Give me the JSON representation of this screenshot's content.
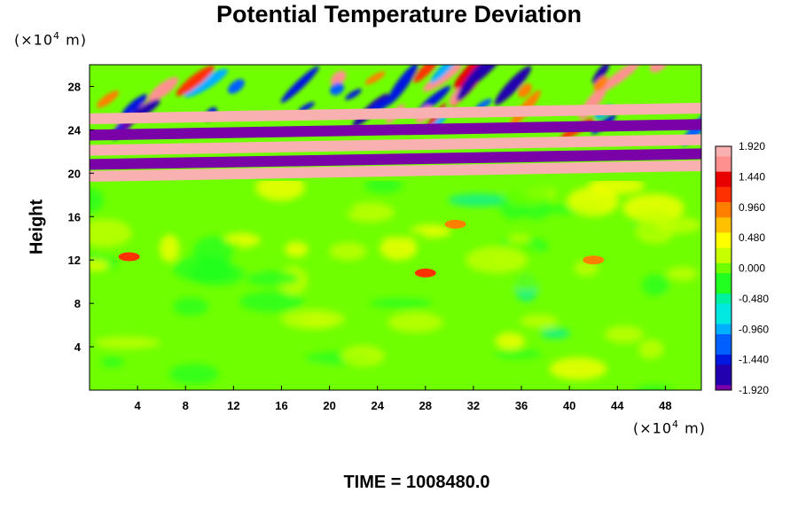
{
  "chart_data": {
    "type": "heatmap",
    "title": "Potential Temperature Deviation",
    "xlabel": "",
    "ylabel": "Height",
    "x_unit": "(×10",
    "x_unit_exp": "4",
    "x_unit_tail": " m)",
    "y_unit": "(×10",
    "y_unit_exp": "4",
    "y_unit_tail": " m)",
    "xlim": [
      0,
      51
    ],
    "ylim": [
      0,
      30
    ],
    "x_ticks": [
      4,
      8,
      12,
      16,
      20,
      24,
      28,
      32,
      36,
      40,
      44,
      48
    ],
    "y_ticks": [
      4,
      8,
      12,
      16,
      20,
      24,
      28
    ],
    "colorbar": {
      "min": -1.92,
      "max": 1.92,
      "tick_labels": [
        "1.920",
        "1.440",
        "0.960",
        "0.480",
        "0.000",
        "-0.480",
        "-0.960",
        "-1.440",
        "-1.920"
      ],
      "tick_values": [
        1.92,
        1.44,
        0.96,
        0.48,
        0.0,
        -0.48,
        -0.96,
        -1.44,
        -1.92
      ],
      "colors": [
        "#7a00a8",
        "#2200b0",
        "#0018e0",
        "#0060ff",
        "#00b0ff",
        "#00e8e0",
        "#00f0a0",
        "#20ff20",
        "#70ff00",
        "#c8ff00",
        "#ffff00",
        "#ffc000",
        "#ff8000",
        "#ff3000",
        "#e80000",
        "#ff9090",
        "#f8b0b0"
      ]
    },
    "features": {
      "background_value": 0.0,
      "stratospheric_bands": [
        {
          "y_center": 20.2,
          "value": 1.92
        },
        {
          "y_center": 21.3,
          "value": -1.92
        },
        {
          "y_center": 22.6,
          "value": 1.92
        },
        {
          "y_center": 24.0,
          "value": -1.92
        },
        {
          "y_center": 25.5,
          "value": 1.92
        }
      ],
      "warm_spots": [
        {
          "x": 3.3,
          "y": 12.3,
          "value": 1.2
        },
        {
          "x": 28.0,
          "y": 10.8,
          "value": 1.3
        },
        {
          "x": 30.5,
          "y": 15.3,
          "value": 1.0
        },
        {
          "x": 42.0,
          "y": 12.0,
          "value": 0.9
        }
      ]
    },
    "grid": false,
    "legend": "colorbar-right"
  },
  "footer": {
    "time_label": "TIME = 1008480.0"
  }
}
